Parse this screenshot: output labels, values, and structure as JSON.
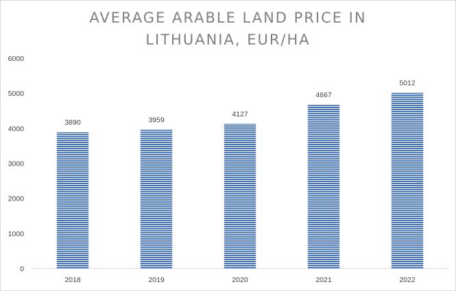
{
  "chart_data": {
    "type": "bar",
    "title_lines": [
      "AVERAGE ARABLE LAND PRICE IN",
      "LITHUANIA, EUR/HA"
    ],
    "categories": [
      "2018",
      "2019",
      "2020",
      "2021",
      "2022"
    ],
    "values": [
      3890,
      3959,
      4127,
      4667,
      5012
    ],
    "ylim": [
      0,
      6000
    ],
    "yticks": [
      "0",
      "1000",
      "2000",
      "3000",
      "4000",
      "5000",
      "6000"
    ],
    "xlabel": "",
    "ylabel": "",
    "grid": false,
    "legend": "none",
    "data_labels": true,
    "bar_color": "#4472c4",
    "bar_fill": "horizontal-stripes"
  }
}
